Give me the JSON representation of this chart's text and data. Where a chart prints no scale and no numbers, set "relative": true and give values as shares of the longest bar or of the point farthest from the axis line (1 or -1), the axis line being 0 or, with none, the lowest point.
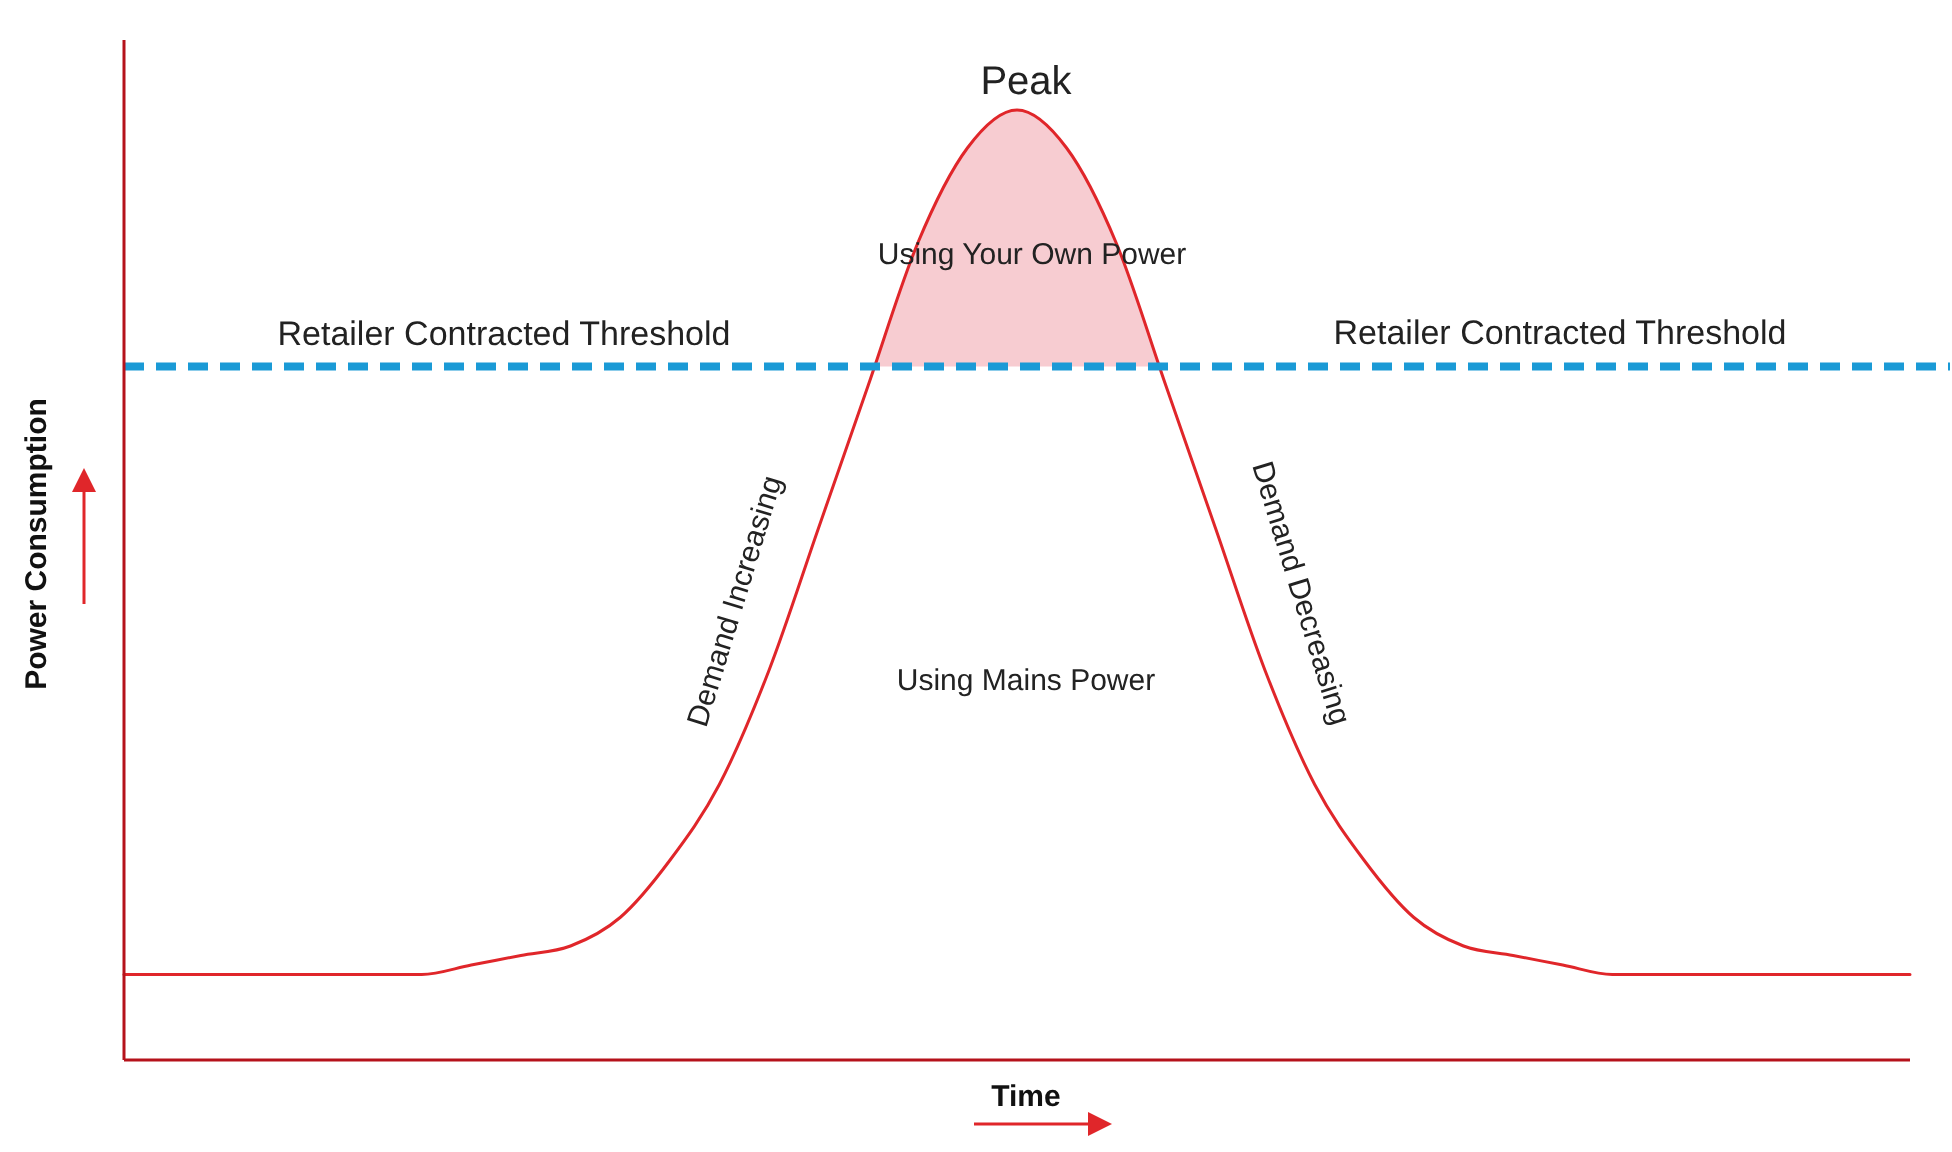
{
  "chart_data": {
    "type": "line",
    "relative": true,
    "xlabel": "Time",
    "ylabel": "Power Consumption",
    "marker": "none",
    "line_style": "solid",
    "categories": [
      null,
      null,
      null,
      null,
      null,
      null,
      null,
      null,
      null,
      null,
      null,
      null,
      null,
      null,
      null,
      null,
      null,
      null,
      null,
      null,
      null,
      null,
      null,
      null,
      null,
      null,
      null,
      null,
      null,
      null,
      null,
      null,
      null,
      null,
      null,
      null,
      null
    ],
    "series": [
      {
        "color": "#e0262a",
        "values": [
          0.09,
          0.09,
          0.09,
          0.09,
          0.09,
          0.09,
          0.09,
          0.1,
          0.11,
          0.12,
          0.15,
          0.21,
          0.29,
          0.41,
          0.56,
          0.71,
          0.86,
          0.96,
          1,
          0.96,
          0.86,
          0.71,
          0.56,
          0.41,
          0.29,
          0.21,
          0.15,
          0.12,
          0.11,
          0.1,
          0.09,
          0.09,
          0.09,
          0.09,
          0.09,
          0.09,
          0.09
        ]
      }
    ],
    "ref_lines": [
      {
        "axis": "y",
        "value": 0.73,
        "label": "Retailer Contracted Threshold",
        "color": "#1a9ad6",
        "line_style": "dashed"
      }
    ],
    "bands": [
      {
        "axis": "y",
        "from": 0.73,
        "to": 1,
        "color": "#f7ccd1"
      }
    ],
    "annotations": [
      "Peak",
      "Using Your Own Power",
      "Retailer Contracted Threshold",
      "Demand Increasing",
      "Demand Decreasing",
      "Using Mains Power"
    ]
  }
}
